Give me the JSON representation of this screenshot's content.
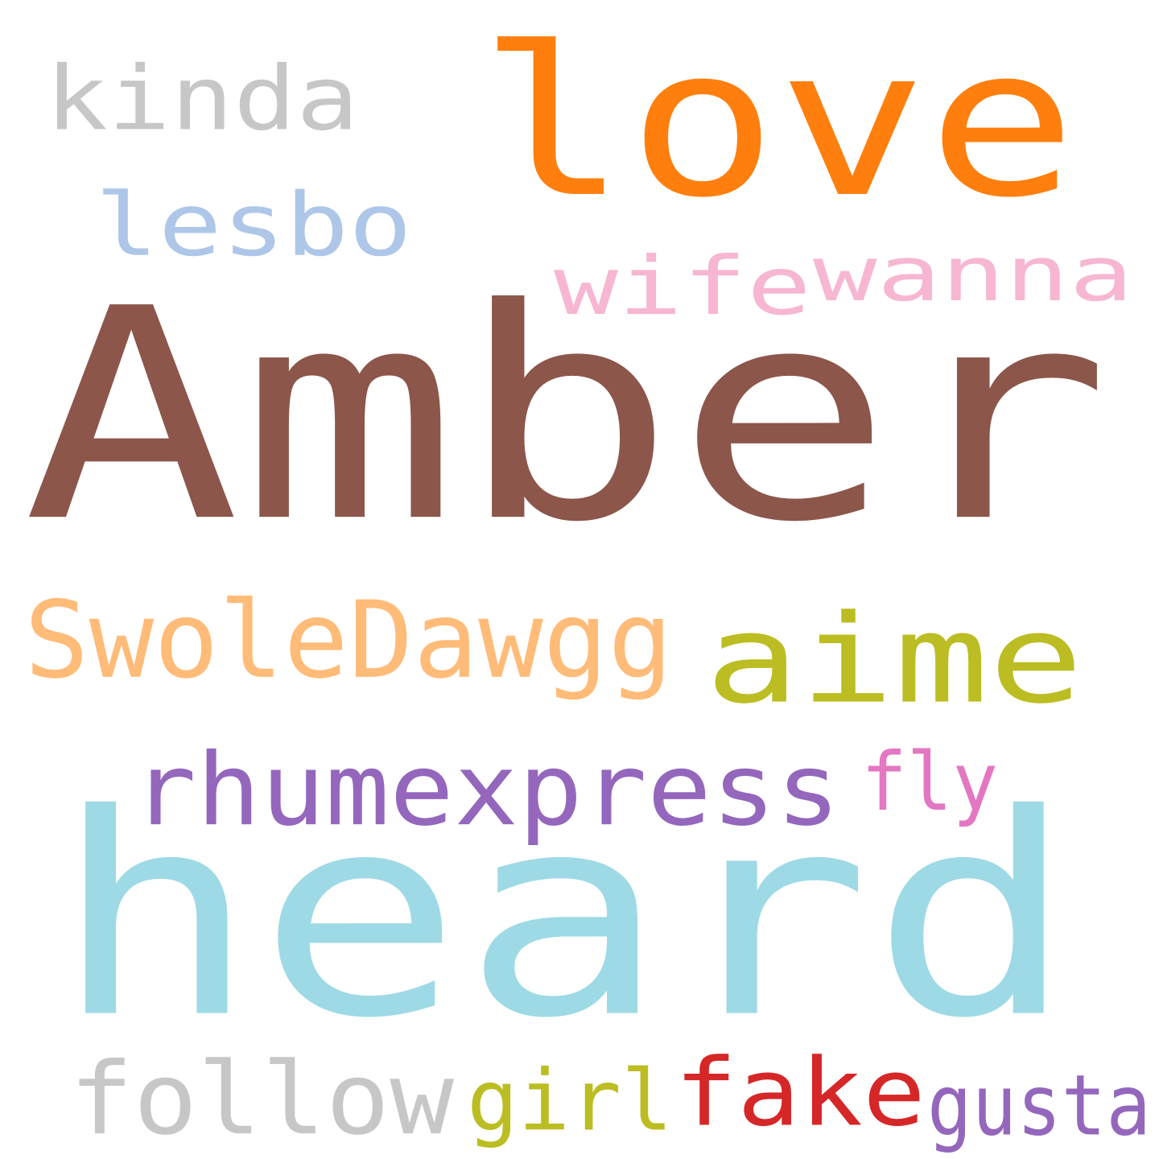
{
  "words": [
    {
      "id": "amber",
      "text": "Amber",
      "color": "#8c564b"
    },
    {
      "id": "heard",
      "text": "heard",
      "color": "#9edae5"
    },
    {
      "id": "love",
      "text": "love",
      "color": "#ff7f0e"
    },
    {
      "id": "aime",
      "text": "aime",
      "color": "#bcbd22"
    },
    {
      "id": "swoledawgg",
      "text": "SwoleDawgg",
      "color": "#ffbb78"
    },
    {
      "id": "rhumexpress",
      "text": "rhumexpress",
      "color": "#9467bd"
    },
    {
      "id": "kinda",
      "text": "kinda",
      "color": "#c7c7c7"
    },
    {
      "id": "lesbo",
      "text": "lesbo",
      "color": "#aec7e8"
    },
    {
      "id": "wife",
      "text": "wife",
      "color": "#f7b6d2"
    },
    {
      "id": "wanna",
      "text": "wanna",
      "color": "#f7b6d2"
    },
    {
      "id": "fly",
      "text": "fly",
      "color": "#e377c2"
    },
    {
      "id": "follow",
      "text": "follow",
      "color": "#c7c7c7"
    },
    {
      "id": "girl",
      "text": "girl",
      "color": "#bcbd22"
    },
    {
      "id": "fake",
      "text": "fake",
      "color": "#d62728"
    },
    {
      "id": "gusta",
      "text": "gusta",
      "color": "#9467bd"
    }
  ]
}
